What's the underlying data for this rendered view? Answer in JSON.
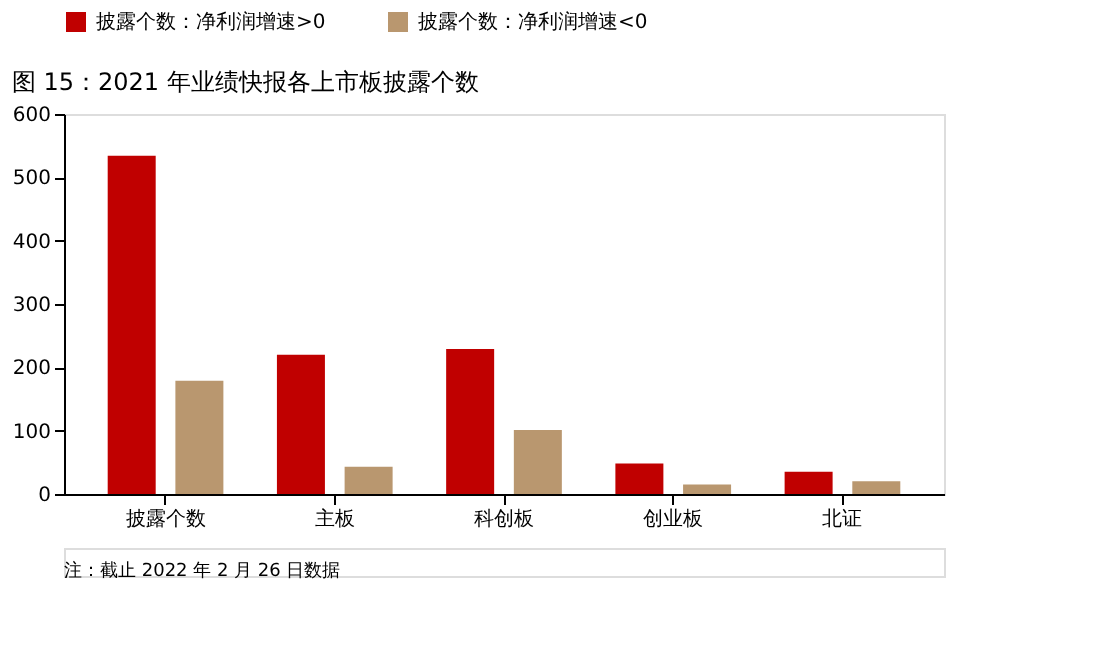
{
  "chart_data": {
    "type": "bar",
    "title": "图 15：2021 年业绩快报各上市板披露个数",
    "categories": [
      "披露个数",
      "主板",
      "科创板",
      "创业板",
      "北证"
    ],
    "series": [
      {
        "name": "披露个数：净利润增速>0",
        "color": "#c00000",
        "values": [
          534,
          220,
          229,
          48,
          35
        ]
      },
      {
        "name": "披露个数：净利润增速<0",
        "color": "#b9976f",
        "values": [
          179,
          43,
          101,
          15,
          20
        ]
      }
    ],
    "ylim": [
      0,
      600
    ],
    "yticks": [
      0,
      100,
      200,
      300,
      400,
      500,
      600
    ],
    "grid": false,
    "legend": "top",
    "annotations": [
      "注：截止 2022 年 2 月 26 日数据"
    ]
  }
}
